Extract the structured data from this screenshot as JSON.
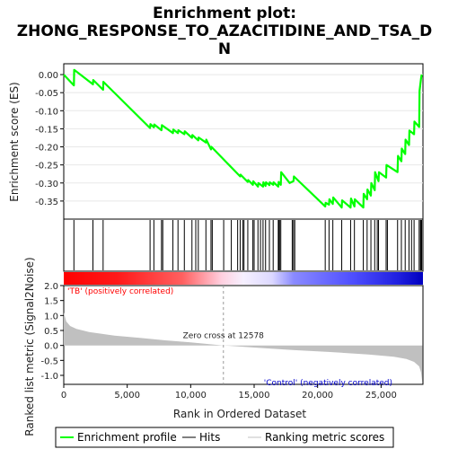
{
  "chart_data": {
    "type": "line",
    "title_lines": [
      "Enrichment plot:",
      "ZHONG_RESPONSE_TO_AZACITIDINE_AND_TSA_D",
      "N"
    ],
    "es_panel": {
      "ylabel": "Enrichment score (ES)",
      "ylim": [
        -0.4,
        0.03
      ],
      "yticks": [
        0.0,
        -0.05,
        -0.1,
        -0.15,
        -0.2,
        -0.25,
        -0.3,
        -0.35
      ],
      "ytick_labels": [
        "0.00",
        "-0.05",
        "-0.10",
        "-0.15",
        "-0.20",
        "-0.25",
        "-0.30",
        "-0.35"
      ],
      "series": [
        {
          "name": "Enrichment profile",
          "color": "#00ff00",
          "x": [
            0,
            800,
            820,
            2300,
            2320,
            3100,
            3120,
            6800,
            6830,
            7100,
            7130,
            7700,
            7730,
            8600,
            8630,
            9000,
            9030,
            9500,
            9530,
            10100,
            10130,
            10600,
            10630,
            11200,
            11230,
            11600,
            11630,
            13900,
            13930,
            14500,
            14530,
            14900,
            14930,
            15300,
            15330,
            15700,
            15730,
            15900,
            15930,
            16200,
            16230,
            16500,
            16530,
            16900,
            16930,
            17100,
            17130,
            17800,
            18100,
            18130,
            20600,
            20630,
            20900,
            20930,
            21200,
            21230,
            21900,
            21930,
            22600,
            22630,
            22900,
            22930,
            23600,
            23630,
            23900,
            23930,
            24200,
            24230,
            24500,
            24530,
            24800,
            24830,
            25400,
            25430,
            26300,
            26330,
            26600,
            26630,
            26900,
            26930,
            27200,
            27230,
            27600,
            27630,
            28000,
            28030,
            28150,
            28200
          ],
          "y": [
            0.0,
            -0.03,
            0.013,
            -0.027,
            -0.015,
            -0.042,
            -0.02,
            -0.148,
            -0.137,
            -0.146,
            -0.138,
            -0.154,
            -0.14,
            -0.162,
            -0.152,
            -0.162,
            -0.154,
            -0.165,
            -0.157,
            -0.175,
            -0.167,
            -0.182,
            -0.174,
            -0.188,
            -0.18,
            -0.207,
            -0.2,
            -0.282,
            -0.277,
            -0.297,
            -0.292,
            -0.305,
            -0.295,
            -0.31,
            -0.3,
            -0.31,
            -0.298,
            -0.308,
            -0.298,
            -0.306,
            -0.298,
            -0.305,
            -0.298,
            -0.31,
            -0.297,
            -0.305,
            -0.27,
            -0.3,
            -0.295,
            -0.282,
            -0.365,
            -0.355,
            -0.36,
            -0.345,
            -0.358,
            -0.34,
            -0.368,
            -0.348,
            -0.368,
            -0.343,
            -0.365,
            -0.345,
            -0.368,
            -0.33,
            -0.345,
            -0.318,
            -0.335,
            -0.3,
            -0.32,
            -0.27,
            -0.295,
            -0.27,
            -0.285,
            -0.25,
            -0.27,
            -0.225,
            -0.24,
            -0.205,
            -0.22,
            -0.18,
            -0.195,
            -0.155,
            -0.165,
            -0.13,
            -0.145,
            -0.045,
            -0.01,
            0.0
          ]
        }
      ]
    },
    "hits": {
      "name": "Hits",
      "color": "#000000",
      "x": [
        800,
        2300,
        3100,
        6800,
        7100,
        7700,
        7800,
        8600,
        9000,
        9500,
        10100,
        10400,
        10600,
        11200,
        11600,
        11700,
        12600,
        13200,
        13700,
        13900,
        14100,
        14200,
        14500,
        14900,
        15000,
        15300,
        15500,
        15700,
        15900,
        16200,
        16500,
        16900,
        16950,
        17000,
        17100,
        18000,
        18100,
        18200,
        20600,
        20900,
        21200,
        21900,
        22600,
        22900,
        23600,
        23900,
        24200,
        24500,
        24700,
        24800,
        25400,
        25500,
        26300,
        26600,
        26900,
        27200,
        27400,
        27600,
        28000,
        28100,
        28150,
        28200
      ]
    },
    "ranked_panel": {
      "ylabel": "Ranked list metric (Signal2Noise)",
      "ylim": [
        -1.3,
        2.0
      ],
      "yticks": [
        2.0,
        1.5,
        1.0,
        0.5,
        0.0,
        -0.5,
        -1.0
      ],
      "ytick_labels": [
        "2.0",
        "1.5",
        "1.0",
        "0.5",
        "0.0",
        "-0.5",
        "-1.0"
      ],
      "curve_x": [
        0,
        200,
        500,
        1000,
        2000,
        4000,
        6000,
        8000,
        10000,
        12578,
        15000,
        18000,
        21000,
        24000,
        26000,
        27000,
        27600,
        28000,
        28150,
        28250
      ],
      "curve_y": [
        1.1,
        0.8,
        0.65,
        0.55,
        0.45,
        0.33,
        0.25,
        0.17,
        0.1,
        0.0,
        -0.07,
        -0.15,
        -0.22,
        -0.3,
        -0.38,
        -0.45,
        -0.55,
        -0.7,
        -0.9,
        -1.25
      ],
      "zero_cross_label": "Zero cross at 12578",
      "zero_cross": 12578,
      "pos_label": "'TB' (positively correlated)",
      "neg_label": "'Control' (negatively correlated)"
    },
    "xaxis": {
      "xlabel": "Rank in Ordered Dataset",
      "xlim": [
        0,
        28300
      ],
      "xticks": [
        0,
        5000,
        10000,
        15000,
        20000,
        25000
      ],
      "xtick_labels": [
        "0",
        "5,000",
        "10,000",
        "15,000",
        "20,000",
        "25,000"
      ]
    },
    "legend": {
      "placement": "bottom",
      "entries": [
        {
          "label": "Enrichment profile",
          "color": "#00ff00"
        },
        {
          "label": "Hits",
          "color": "#000000"
        },
        {
          "label": "Ranking metric scores",
          "color": "#c0c0c0"
        }
      ]
    },
    "colors": {
      "positive": "#ff0000",
      "negative": "#0000ff",
      "zero_line": "#999999",
      "metric_fill": "#c0c0c0"
    }
  }
}
